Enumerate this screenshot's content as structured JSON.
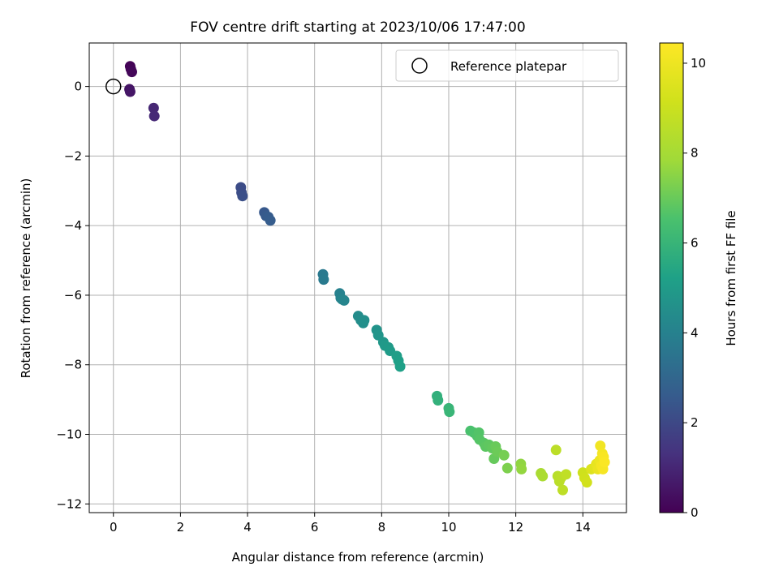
{
  "chart_data": {
    "type": "scatter",
    "title": "FOV centre drift starting at 2023/10/06 17:47:00",
    "xlabel": "Angular distance from reference (arcmin)",
    "ylabel": "Rotation from reference (arcmin)",
    "xlim": [
      -0.72,
      15.3
    ],
    "ylim": [
      -12.25,
      1.25
    ],
    "xticks": [
      0,
      2,
      4,
      6,
      8,
      10,
      12,
      14
    ],
    "yticks": [
      0,
      -2,
      -4,
      -6,
      -8,
      -10,
      -12
    ],
    "grid": true,
    "legend": {
      "position": "top-right",
      "entries": [
        "Reference platepar"
      ]
    },
    "reference_point": {
      "x": 0,
      "y": 0
    },
    "colorbar": {
      "label": "Hours from first FF file",
      "min": 0,
      "max": 10.45,
      "ticks": [
        0,
        2,
        4,
        6,
        8,
        10
      ],
      "colormap": "viridis"
    },
    "points": [
      {
        "x": 0.5,
        "y": 0.58,
        "h": 0.05
      },
      {
        "x": 0.52,
        "y": 0.5,
        "h": 0.1
      },
      {
        "x": 0.55,
        "y": 0.42,
        "h": 0.15
      },
      {
        "x": 0.48,
        "y": -0.08,
        "h": 0.5
      },
      {
        "x": 0.5,
        "y": -0.15,
        "h": 0.55
      },
      {
        "x": 1.2,
        "y": -0.62,
        "h": 1.0
      },
      {
        "x": 1.22,
        "y": -0.85,
        "h": 1.05
      },
      {
        "x": 3.8,
        "y": -2.9,
        "h": 2.1
      },
      {
        "x": 3.82,
        "y": -3.05,
        "h": 2.15
      },
      {
        "x": 3.85,
        "y": -3.15,
        "h": 2.2
      },
      {
        "x": 4.5,
        "y": -3.62,
        "h": 2.5
      },
      {
        "x": 4.55,
        "y": -3.72,
        "h": 2.55
      },
      {
        "x": 4.62,
        "y": -3.75,
        "h": 2.6
      },
      {
        "x": 4.68,
        "y": -3.85,
        "h": 2.65
      },
      {
        "x": 6.25,
        "y": -5.4,
        "h": 3.7
      },
      {
        "x": 6.27,
        "y": -5.55,
        "h": 3.75
      },
      {
        "x": 6.75,
        "y": -5.95,
        "h": 4.0
      },
      {
        "x": 6.78,
        "y": -6.08,
        "h": 4.05
      },
      {
        "x": 6.82,
        "y": -6.12,
        "h": 4.1
      },
      {
        "x": 6.88,
        "y": -6.15,
        "h": 4.15
      },
      {
        "x": 7.3,
        "y": -6.6,
        "h": 4.4
      },
      {
        "x": 7.38,
        "y": -6.72,
        "h": 4.45
      },
      {
        "x": 7.45,
        "y": -6.8,
        "h": 4.5
      },
      {
        "x": 7.48,
        "y": -6.72,
        "h": 4.55
      },
      {
        "x": 7.85,
        "y": -7.0,
        "h": 4.7
      },
      {
        "x": 7.9,
        "y": -7.15,
        "h": 4.75
      },
      {
        "x": 8.05,
        "y": -7.35,
        "h": 4.85
      },
      {
        "x": 8.1,
        "y": -7.45,
        "h": 4.9
      },
      {
        "x": 8.2,
        "y": -7.5,
        "h": 4.95
      },
      {
        "x": 8.25,
        "y": -7.6,
        "h": 5.0
      },
      {
        "x": 8.45,
        "y": -7.75,
        "h": 5.1
      },
      {
        "x": 8.5,
        "y": -7.88,
        "h": 5.15
      },
      {
        "x": 8.55,
        "y": -8.05,
        "h": 5.2
      },
      {
        "x": 9.65,
        "y": -8.9,
        "h": 5.8
      },
      {
        "x": 9.68,
        "y": -9.02,
        "h": 5.85
      },
      {
        "x": 10.0,
        "y": -9.25,
        "h": 6.0
      },
      {
        "x": 10.02,
        "y": -9.35,
        "h": 6.05
      },
      {
        "x": 10.65,
        "y": -9.9,
        "h": 6.5
      },
      {
        "x": 10.75,
        "y": -9.95,
        "h": 6.55
      },
      {
        "x": 10.85,
        "y": -10.05,
        "h": 6.6
      },
      {
        "x": 10.9,
        "y": -9.95,
        "h": 6.65
      },
      {
        "x": 10.92,
        "y": -10.15,
        "h": 6.7
      },
      {
        "x": 11.05,
        "y": -10.25,
        "h": 6.75
      },
      {
        "x": 11.1,
        "y": -10.35,
        "h": 6.8
      },
      {
        "x": 11.2,
        "y": -10.3,
        "h": 6.85
      },
      {
        "x": 11.3,
        "y": -10.4,
        "h": 6.9
      },
      {
        "x": 11.35,
        "y": -10.7,
        "h": 6.95
      },
      {
        "x": 11.4,
        "y": -10.35,
        "h": 7.0
      },
      {
        "x": 11.45,
        "y": -10.5,
        "h": 7.05
      },
      {
        "x": 11.65,
        "y": -10.6,
        "h": 7.2
      },
      {
        "x": 11.75,
        "y": -10.97,
        "h": 7.3
      },
      {
        "x": 12.15,
        "y": -10.85,
        "h": 7.6
      },
      {
        "x": 12.17,
        "y": -11.0,
        "h": 7.65
      },
      {
        "x": 12.75,
        "y": -11.12,
        "h": 8.1
      },
      {
        "x": 12.8,
        "y": -11.2,
        "h": 8.15
      },
      {
        "x": 13.2,
        "y": -10.45,
        "h": 8.6
      },
      {
        "x": 13.25,
        "y": -11.2,
        "h": 8.5
      },
      {
        "x": 13.3,
        "y": -11.35,
        "h": 8.55
      },
      {
        "x": 13.35,
        "y": -11.25,
        "h": 8.6
      },
      {
        "x": 13.4,
        "y": -11.6,
        "h": 8.65
      },
      {
        "x": 13.5,
        "y": -11.15,
        "h": 8.7
      },
      {
        "x": 14.0,
        "y": -11.1,
        "h": 9.1
      },
      {
        "x": 14.05,
        "y": -11.25,
        "h": 9.15
      },
      {
        "x": 14.12,
        "y": -11.38,
        "h": 9.2
      },
      {
        "x": 14.25,
        "y": -11.0,
        "h": 9.5
      },
      {
        "x": 14.35,
        "y": -10.95,
        "h": 9.65
      },
      {
        "x": 14.4,
        "y": -10.85,
        "h": 9.8
      },
      {
        "x": 14.45,
        "y": -11.0,
        "h": 9.9
      },
      {
        "x": 14.5,
        "y": -10.75,
        "h": 10.0
      },
      {
        "x": 14.52,
        "y": -10.33,
        "h": 10.1
      },
      {
        "x": 14.55,
        "y": -10.9,
        "h": 10.15
      },
      {
        "x": 14.58,
        "y": -10.55,
        "h": 10.2
      },
      {
        "x": 14.6,
        "y": -11.0,
        "h": 10.25
      },
      {
        "x": 14.62,
        "y": -10.65,
        "h": 10.3
      },
      {
        "x": 14.65,
        "y": -10.8,
        "h": 10.35
      }
    ]
  }
}
